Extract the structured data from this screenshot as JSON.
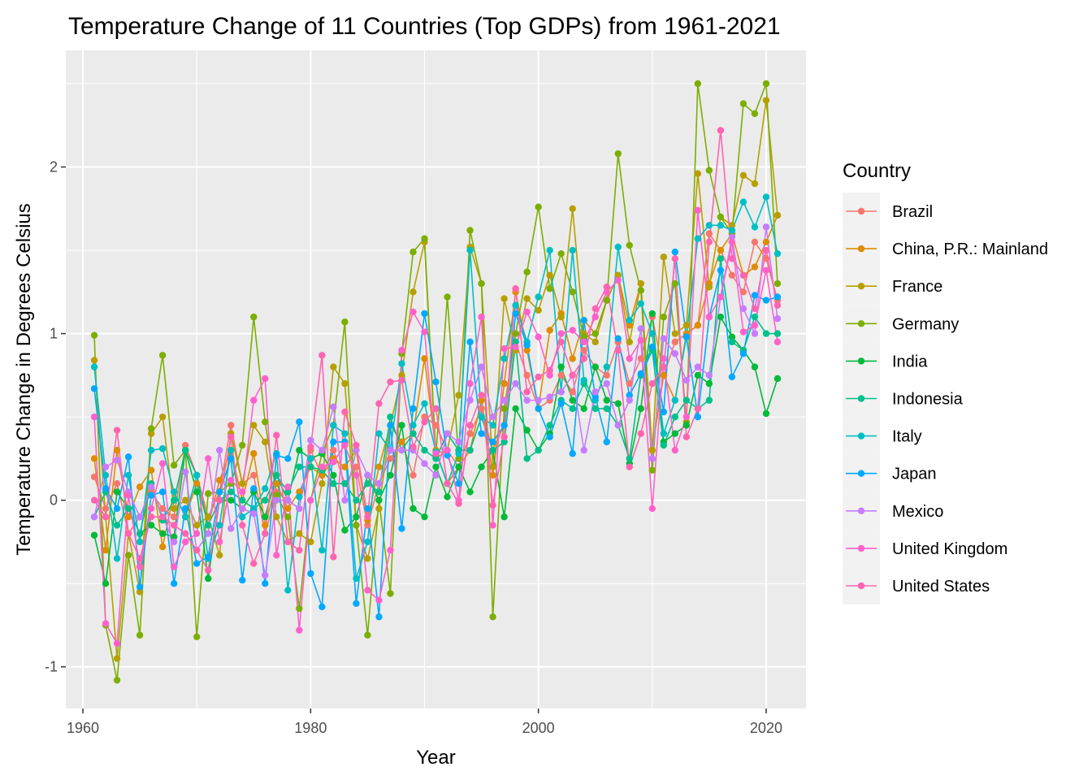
{
  "chart_data": {
    "type": "line",
    "title": "Temperature Change of 11 Countries (Top GDPs) from 1961-2021",
    "xlabel": "Year",
    "ylabel": "Temperature Change in Degrees Celsius",
    "xlim": [
      1958.5,
      2023.5
    ],
    "ylim": [
      -1.25,
      2.7
    ],
    "x_ticks": [
      1960,
      1980,
      2000,
      2020
    ],
    "y_ticks": [
      -1,
      0,
      1,
      2
    ],
    "x_tick_labels": [
      "1960",
      "1980",
      "2000",
      "2020"
    ],
    "y_tick_labels": [
      "-1",
      "0",
      "1",
      "2"
    ],
    "grid": true,
    "legend": {
      "title": "Country",
      "position": "right"
    },
    "x": [
      1961,
      1962,
      1963,
      1964,
      1965,
      1966,
      1967,
      1968,
      1969,
      1970,
      1971,
      1972,
      1973,
      1974,
      1975,
      1976,
      1977,
      1978,
      1979,
      1980,
      1981,
      1982,
      1983,
      1984,
      1985,
      1986,
      1987,
      1988,
      1989,
      1990,
      1991,
      1992,
      1993,
      1994,
      1995,
      1996,
      1997,
      1998,
      1999,
      2000,
      2001,
      2002,
      2003,
      2004,
      2005,
      2006,
      2007,
      2008,
      2009,
      2010,
      2011,
      2012,
      2013,
      2014,
      2015,
      2016,
      2017,
      2018,
      2019,
      2020,
      2021
    ],
    "series": [
      {
        "name": "Brazil",
        "color": "#F8766D",
        "values": [
          0.14,
          -0.05,
          0.1,
          -0.2,
          -0.1,
          0.05,
          -0.05,
          -0.1,
          0.33,
          0.15,
          -0.1,
          0.05,
          0.45,
          0.1,
          0.15,
          -0.2,
          0.05,
          0.0,
          -0.05,
          0.3,
          0.15,
          0.3,
          0.1,
          0.2,
          -0.15,
          0.1,
          0.25,
          0.35,
          0.15,
          0.5,
          0.45,
          0.3,
          0.2,
          0.4,
          0.55,
          0.3,
          0.45,
          0.95,
          0.75,
          0.55,
          0.6,
          0.75,
          0.65,
          0.9,
          0.8,
          0.75,
          0.95,
          0.7,
          0.85,
          1.1,
          0.75,
          0.95,
          1.0,
          1.05,
          1.6,
          1.5,
          1.35,
          1.25,
          1.55,
          1.45,
          1.2
        ]
      },
      {
        "name": "China, P.R.: Mainland",
        "color": "#DE8C00",
        "values": [
          0.25,
          -0.3,
          0.3,
          -0.1,
          0.08,
          0.18,
          -0.28,
          0.05,
          -0.1,
          0.1,
          -0.15,
          0.12,
          0.3,
          0.0,
          0.28,
          -0.15,
          0.1,
          -0.05,
          0.05,
          0.2,
          0.15,
          0.25,
          0.2,
          0.3,
          -0.12,
          0.2,
          0.45,
          0.35,
          0.4,
          0.85,
          0.3,
          0.1,
          0.2,
          0.3,
          0.6,
          0.15,
          0.7,
          1.25,
          0.9,
          0.55,
          1.02,
          1.12,
          0.85,
          1.08,
          1.0,
          1.2,
          1.35,
          1.05,
          1.3,
          0.3,
          0.75,
          0.6,
          1.0,
          1.05,
          1.3,
          1.5,
          1.6,
          1.35,
          1.4,
          1.55,
          1.71
        ]
      },
      {
        "name": "France",
        "color": "#B79F00",
        "values": [
          0.84,
          -0.1,
          -0.95,
          -0.2,
          -0.55,
          0.4,
          0.5,
          -0.05,
          0.0,
          -0.15,
          -0.1,
          -0.33,
          0.4,
          0.1,
          0.45,
          0.35,
          -0.1,
          -0.25,
          -0.2,
          -0.25,
          0.1,
          0.8,
          0.7,
          -0.15,
          -0.35,
          -0.05,
          0.45,
          0.75,
          1.25,
          1.55,
          0.25,
          0.3,
          0.63,
          1.52,
          1.3,
          0.2,
          1.21,
          0.9,
          1.21,
          1.14,
          1.35,
          1.1,
          1.75,
          1.0,
          0.95,
          1.2,
          1.35,
          0.95,
          1.3,
          0.3,
          1.46,
          1.0,
          1.05,
          1.96,
          1.28,
          1.7,
          1.65,
          1.95,
          1.9,
          2.4,
          1.71
        ]
      },
      {
        "name": "Germany",
        "color": "#7CAE00",
        "values": [
          0.99,
          -0.75,
          -1.08,
          -0.33,
          -0.81,
          0.43,
          0.87,
          0.21,
          0.3,
          -0.82,
          0.04,
          0.05,
          0.1,
          0.33,
          1.1,
          0.47,
          0.03,
          -0.1,
          -0.65,
          0.0,
          0.28,
          0.45,
          1.07,
          -0.15,
          -0.81,
          0.0,
          -0.56,
          0.88,
          1.49,
          1.57,
          0.27,
          1.22,
          0.25,
          1.62,
          1.3,
          -0.7,
          0.55,
          1.0,
          1.37,
          1.76,
          1.27,
          1.48,
          1.25,
          0.98,
          1.0,
          1.2,
          2.08,
          1.53,
          1.26,
          0.18,
          1.1,
          1.3,
          0.47,
          2.5,
          1.98,
          1.7,
          1.6,
          2.38,
          2.32,
          2.5,
          1.3
        ]
      },
      {
        "name": "India",
        "color": "#00BA38",
        "values": [
          -0.21,
          -0.5,
          0.05,
          -0.05,
          -0.2,
          -0.15,
          -0.2,
          -0.22,
          0.3,
          0.05,
          -0.47,
          0.0,
          0.0,
          -0.05,
          0.05,
          -0.1,
          0.15,
          0.0,
          0.3,
          0.25,
          0.28,
          0.15,
          -0.18,
          -0.1,
          0.15,
          0.0,
          0.15,
          0.45,
          -0.05,
          -0.1,
          0.2,
          0.02,
          0.2,
          0.05,
          0.2,
          0.3,
          -0.1,
          0.55,
          0.42,
          0.3,
          0.4,
          0.8,
          0.6,
          0.55,
          0.8,
          0.6,
          0.58,
          0.22,
          0.55,
          1.12,
          0.35,
          0.4,
          0.45,
          0.75,
          0.7,
          1.1,
          0.98,
          0.9,
          0.8,
          0.52,
          0.73
        ]
      },
      {
        "name": "Indonesia",
        "color": "#00C08B",
        "values": [
          -0.1,
          0.05,
          -0.15,
          -0.05,
          -0.2,
          0.1,
          -0.12,
          0.0,
          0.3,
          0.15,
          -0.15,
          0.0,
          0.05,
          0.0,
          -0.05,
          0.0,
          0.15,
          0.05,
          0.2,
          0.2,
          0.18,
          0.1,
          0.1,
          0.0,
          0.1,
          0.05,
          0.5,
          0.3,
          0.4,
          0.3,
          0.25,
          0.4,
          0.3,
          0.3,
          0.5,
          0.3,
          0.35,
          0.95,
          0.25,
          0.3,
          0.45,
          0.6,
          0.55,
          0.7,
          0.55,
          0.55,
          0.45,
          0.25,
          0.75,
          0.9,
          0.33,
          0.5,
          0.6,
          0.55,
          0.6,
          1.45,
          0.95,
          0.9,
          1.1,
          1.0,
          1.0
        ]
      },
      {
        "name": "Italy",
        "color": "#00BFC4",
        "values": [
          0.8,
          0.15,
          -0.35,
          0.15,
          -0.25,
          0.3,
          0.31,
          0.05,
          -0.1,
          0.15,
          -0.35,
          -0.15,
          0.3,
          -0.1,
          -0.05,
          0.07,
          0.28,
          -0.54,
          0.02,
          0.25,
          -0.3,
          0.45,
          0.4,
          -0.47,
          -0.25,
          0.4,
          0.3,
          0.82,
          0.45,
          0.58,
          0.29,
          0.1,
          0.28,
          1.5,
          0.5,
          0.45,
          0.85,
          1.17,
          0.95,
          1.22,
          1.5,
          0.65,
          1.5,
          0.72,
          0.6,
          0.8,
          1.52,
          1.08,
          1.18,
          1.0,
          0.4,
          0.6,
          0.98,
          1.57,
          1.65,
          1.65,
          1.62,
          1.79,
          1.64,
          1.82,
          1.48
        ]
      },
      {
        "name": "Japan",
        "color": "#00A9FF",
        "values": [
          0.67,
          0.07,
          -0.05,
          0.26,
          -0.52,
          0.03,
          0.05,
          -0.5,
          -0.05,
          -0.38,
          -0.34,
          0.05,
          0.25,
          -0.48,
          0.07,
          -0.5,
          0.27,
          0.25,
          0.47,
          -0.44,
          -0.64,
          0.35,
          0.35,
          -0.62,
          -0.05,
          -0.7,
          0.45,
          -0.17,
          0.55,
          1.12,
          0.71,
          0.27,
          0.1,
          0.95,
          0.4,
          0.35,
          0.45,
          1.12,
          0.93,
          0.55,
          0.38,
          0.58,
          0.28,
          1.08,
          0.62,
          0.35,
          0.97,
          0.63,
          0.76,
          0.92,
          0.53,
          1.49,
          0.98,
          0.5,
          1.1,
          1.38,
          0.74,
          0.88,
          1.23,
          1.2,
          1.22
        ]
      },
      {
        "name": "Mexico",
        "color": "#C77CFF",
        "values": [
          -0.1,
          0.2,
          0.24,
          0.05,
          -0.1,
          0.08,
          -0.1,
          -0.25,
          0.17,
          -0.3,
          -0.2,
          0.3,
          -0.17,
          -0.05,
          -0.08,
          -0.45,
          0.0,
          0.0,
          -0.05,
          0.36,
          0.3,
          0.56,
          0.0,
          0.3,
          0.15,
          0.1,
          0.3,
          0.3,
          0.3,
          0.22,
          0.15,
          0.4,
          0.35,
          0.6,
          0.8,
          0.5,
          0.6,
          0.7,
          0.6,
          0.6,
          0.62,
          0.65,
          0.75,
          0.3,
          0.65,
          0.7,
          0.45,
          0.6,
          1.03,
          0.25,
          0.97,
          0.88,
          0.72,
          0.8,
          0.75,
          1.22,
          1.58,
          1.15,
          1.0,
          1.64,
          1.09
        ]
      },
      {
        "name": "United Kingdom",
        "color": "#FF61CC",
        "values": [
          0.5,
          -0.74,
          -0.86,
          0.03,
          -0.4,
          -0.05,
          0.22,
          -0.4,
          -0.25,
          -0.2,
          0.25,
          -0.25,
          0.12,
          0.05,
          0.6,
          0.73,
          -0.33,
          0.08,
          -0.78,
          0.0,
          0.2,
          0.23,
          0.33,
          0.15,
          -0.54,
          -0.6,
          -0.3,
          0.9,
          1.13,
          1.01,
          0.28,
          0.3,
          0.0,
          0.7,
          1.1,
          -0.15,
          0.91,
          0.92,
          1.13,
          0.98,
          0.75,
          1.0,
          1.02,
          0.95,
          1.1,
          1.25,
          1.32,
          0.85,
          0.96,
          -0.05,
          0.85,
          0.3,
          0.5,
          1.74,
          1.1,
          1.22,
          1.55,
          1.01,
          1.05,
          1.38,
          0.95
        ]
      },
      {
        "name": "United States",
        "color": "#FF64B0",
        "values": [
          0.0,
          -0.1,
          0.42,
          -0.2,
          -0.35,
          -0.1,
          -0.1,
          -0.15,
          -0.2,
          -0.3,
          -0.42,
          0.0,
          0.38,
          -0.15,
          -0.38,
          -0.2,
          0.39,
          -0.25,
          -0.3,
          0.32,
          0.87,
          -0.34,
          0.53,
          0.33,
          -0.1,
          0.58,
          0.71,
          0.72,
          0.32,
          0.47,
          0.55,
          0.1,
          -0.02,
          0.45,
          0.63,
          -0.03,
          0.38,
          1.27,
          0.65,
          0.74,
          0.78,
          0.95,
          0.75,
          0.85,
          1.15,
          1.28,
          0.9,
          0.2,
          0.4,
          0.7,
          0.8,
          1.45,
          0.38,
          0.55,
          1.55,
          2.22,
          1.45,
          1.35,
          1.15,
          1.5,
          1.17
        ]
      }
    ]
  }
}
